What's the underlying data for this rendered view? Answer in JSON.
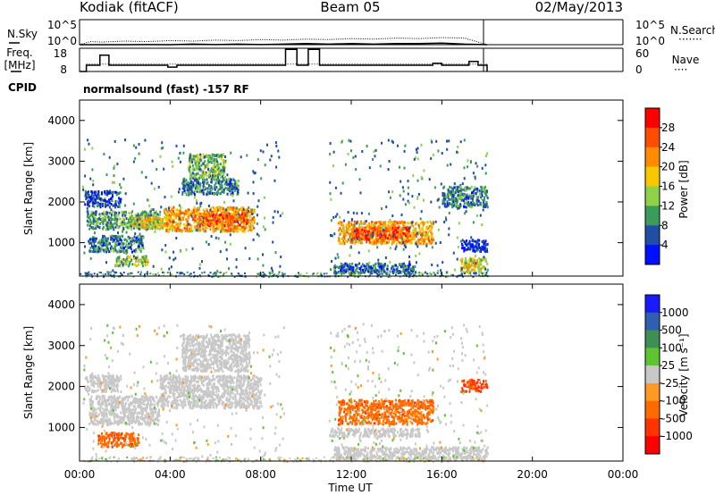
{
  "header": {
    "station": "Kodiak (fitACF)",
    "beam": "Beam 05",
    "date": "02/May/2013"
  },
  "noise_panel": {
    "left_label": "N.Sky",
    "right_label": "N.Search",
    "right_legend": "·······",
    "left_ticks": [
      "10^5",
      "10^0"
    ],
    "right_ticks": [
      "10^5",
      "10^0"
    ]
  },
  "freq_panel": {
    "left_label_1": "Freq.",
    "left_label_2": "[MHz]",
    "right_label": "Nave",
    "right_legend": "····",
    "left_ticks": [
      "18",
      "8"
    ],
    "right_ticks": [
      "60",
      "0"
    ]
  },
  "cpid": {
    "label": "CPID",
    "text": "normalsound (fast) -157 RF"
  },
  "xaxis": {
    "label": "Time UT",
    "ticks": [
      "00:00",
      "04:00",
      "08:00",
      "12:00",
      "16:00",
      "20:00",
      "00:00"
    ]
  },
  "power_colorbar": {
    "label": "Power [dB]",
    "ticks": [
      "28",
      "24",
      "20",
      "16",
      "12",
      "8",
      "4"
    ],
    "colors": [
      "#ff0000",
      "#ff4d00",
      "#ff8c00",
      "#f7c800",
      "#8fd24a",
      "#3b9b5a",
      "#1f4fa3",
      "#0010ff"
    ]
  },
  "velocity_colorbar": {
    "label": "Velocity [m s⁻¹]",
    "ticks": [
      "1000",
      "500",
      "100",
      "25",
      "-25",
      "-100",
      "-500",
      "-1000"
    ],
    "colors": [
      "#1a1aff",
      "#2f5fb0",
      "#3f8f55",
      "#5ec42f",
      "#c8c8c8",
      "#ff9a22",
      "#ff6b00",
      "#ff3300",
      "#ff0000"
    ]
  },
  "chart_data": [
    {
      "type": "heatmap",
      "name": "Power",
      "ylabel": "Slant Range [km]",
      "xlim": [
        "00:00",
        "24:00"
      ],
      "ylim": [
        180,
        4500
      ],
      "yticks": [
        "1000",
        "2000",
        "3000",
        "4000"
      ],
      "zlim": [
        0,
        30
      ],
      "regions": [
        {
          "t0": 0.3,
          "t1": 3.6,
          "r0": 1350,
          "r1": 1800,
          "v": 11
        },
        {
          "t0": 2.3,
          "t1": 3.9,
          "r0": 1380,
          "r1": 1650,
          "v": 18
        },
        {
          "t0": 3.7,
          "t1": 7.7,
          "r0": 1300,
          "r1": 1900,
          "v": 21
        },
        {
          "t0": 5.2,
          "t1": 7.4,
          "r0": 1450,
          "r1": 1750,
          "v": 25
        },
        {
          "t0": 4.8,
          "t1": 6.4,
          "r0": 2600,
          "r1": 3200,
          "v": 12
        },
        {
          "t0": 4.5,
          "t1": 7.0,
          "r0": 2200,
          "r1": 2600,
          "v": 8
        },
        {
          "t0": 0.4,
          "t1": 2.8,
          "r0": 800,
          "r1": 1200,
          "v": 8
        },
        {
          "t0": 1.5,
          "t1": 3.0,
          "r0": 450,
          "r1": 700,
          "v": 13
        },
        {
          "t0": 0.2,
          "t1": 1.8,
          "r0": 1900,
          "r1": 2300,
          "v": 5
        },
        {
          "t0": 11.4,
          "t1": 15.6,
          "r0": 1000,
          "r1": 1550,
          "v": 21
        },
        {
          "t0": 12.0,
          "t1": 14.5,
          "r0": 1100,
          "r1": 1400,
          "v": 26
        },
        {
          "t0": 11.2,
          "t1": 14.8,
          "r0": 280,
          "r1": 520,
          "v": 6
        },
        {
          "t0": 16.8,
          "t1": 18.0,
          "r0": 300,
          "r1": 650,
          "v": 17
        },
        {
          "t0": 16.0,
          "t1": 18.0,
          "r0": 1900,
          "r1": 2400,
          "v": 8
        },
        {
          "t0": 16.8,
          "t1": 18.0,
          "r0": 800,
          "r1": 1100,
          "v": 4
        }
      ]
    },
    {
      "type": "heatmap",
      "name": "Velocity",
      "ylabel": "Slant Range [km]",
      "xlim": [
        "00:00",
        "24:00"
      ],
      "ylim": [
        180,
        4500
      ],
      "yticks": [
        "1000",
        "2000",
        "3000",
        "4000"
      ],
      "zlim": [
        -1000,
        1000
      ],
      "regions": [
        {
          "t0": 3.5,
          "t1": 8.0,
          "r0": 1500,
          "r1": 2300,
          "v": 0
        },
        {
          "t0": 4.5,
          "t1": 7.5,
          "r0": 2400,
          "r1": 3300,
          "v": 0
        },
        {
          "t0": 0.4,
          "t1": 3.5,
          "r0": 1100,
          "r1": 1800,
          "v": 0
        },
        {
          "t0": 0.8,
          "t1": 2.6,
          "r0": 550,
          "r1": 900,
          "v": -350
        },
        {
          "t0": 11.4,
          "t1": 15.6,
          "r0": 1100,
          "r1": 1700,
          "v": -300
        },
        {
          "t0": 11.0,
          "t1": 15.0,
          "r0": 800,
          "r1": 1000,
          "v": 0
        },
        {
          "t0": 11.2,
          "t1": 18.0,
          "r0": 250,
          "r1": 550,
          "v": 0
        },
        {
          "t0": 16.8,
          "t1": 18.0,
          "r0": 1900,
          "r1": 2200,
          "v": -550
        },
        {
          "t0": 0.2,
          "t1": 1.8,
          "r0": 1900,
          "r1": 2300,
          "v": 0
        }
      ]
    },
    {
      "type": "line",
      "name": "N.Sky / N.Search",
      "ylim": [
        "10^0",
        "10^5"
      ],
      "x": [
        0.0,
        0.3,
        0.5,
        1.0,
        2.0,
        3.0,
        4.0,
        5.0,
        6.0,
        7.0,
        8.0,
        9.0,
        10.0,
        11.0,
        12.0,
        13.0,
        14.0,
        15.0,
        16.0,
        17.0,
        18.0
      ],
      "y_sky": [
        0.0,
        1.6,
        1.7,
        1.6,
        1.7,
        1.8,
        1.7,
        1.9,
        1.8,
        1.9,
        1.8,
        1.9,
        2.0,
        1.9,
        2.0,
        1.9,
        2.0,
        2.0,
        2.1,
        1.9,
        0.0
      ],
      "y_search": [
        0.0,
        2.2,
        2.4,
        2.3,
        2.5,
        2.4,
        2.6,
        2.5,
        2.7,
        2.6,
        2.8,
        2.7,
        2.9,
        2.8,
        3.0,
        2.9,
        3.1,
        3.0,
        3.2,
        3.1,
        0.0
      ]
    },
    {
      "type": "line",
      "name": "Freq / Nave",
      "ylim": [
        8,
        18
      ],
      "x": [
        0.0,
        0.3,
        0.3,
        0.9,
        0.9,
        1.3,
        1.3,
        3.9,
        3.9,
        4.3,
        4.3,
        9.1,
        9.1,
        9.6,
        9.6,
        10.1,
        10.1,
        10.6,
        10.6,
        15.6,
        15.6,
        16.0,
        16.0,
        17.2,
        17.2,
        17.6,
        17.6,
        18.0,
        18.0
      ],
      "freq": [
        8.0,
        8.0,
        10.7,
        10.7,
        15.0,
        15.0,
        10.7,
        10.7,
        9.9,
        9.9,
        10.7,
        10.7,
        17.5,
        17.5,
        10.7,
        10.7,
        17.5,
        17.5,
        10.7,
        10.7,
        11.5,
        11.5,
        10.7,
        10.7,
        12.3,
        12.3,
        10.7,
        10.7,
        8.0
      ],
      "nave": 19
    }
  ]
}
